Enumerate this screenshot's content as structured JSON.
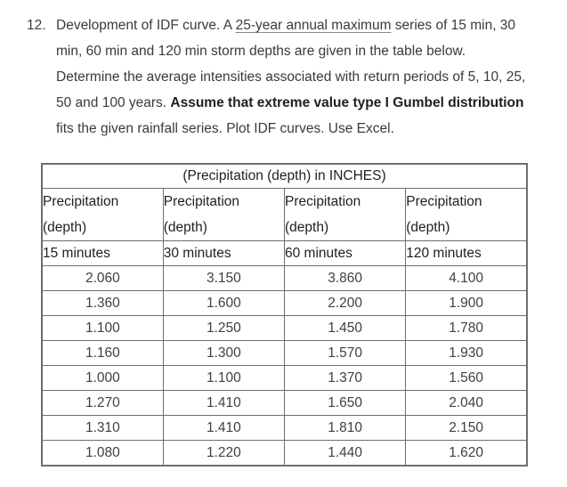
{
  "colors": {
    "background": "#ffffff",
    "body_text": "#3a3a3a",
    "heading_text": "#1f1f1f",
    "table_border": "#6e6e6e"
  },
  "problem": {
    "number": "12.",
    "lines": [
      {
        "pre": "Development of IDF curve. A ",
        "underlined": "25-year annual maximum",
        "post": " series of 15 min, 30"
      },
      {
        "text": "min, 60 min and 120 min storm depths are given in the table below."
      },
      {
        "text": "Determine the average intensities associated with return periods of 5, 10, 25,"
      },
      {
        "pre": "50 and 100 years. ",
        "bold": "Assume that extreme value type I Gumbel distribution"
      },
      {
        "text": "fits the given rainfall series. Plot IDF curves. Use Excel."
      }
    ]
  },
  "table": {
    "title": "(Precipitation (depth) in INCHES)",
    "columns": [
      {
        "label_line1": "Precipitation",
        "label_line2": "(depth)",
        "duration": "15 minutes"
      },
      {
        "label_line1": "Precipitation",
        "label_line2": "(depth)",
        "duration": "30 minutes"
      },
      {
        "label_line1": "Precipitation",
        "label_line2": "(depth)",
        "duration": "60 minutes"
      },
      {
        "label_line1": "Precipitation",
        "label_line2": "(depth)",
        "duration": "120 minutes"
      }
    ],
    "rows": [
      [
        "2.060",
        "3.150",
        "3.860",
        "4.100"
      ],
      [
        "1.360",
        "1.600",
        "2.200",
        "1.900"
      ],
      [
        "1.100",
        "1.250",
        "1.450",
        "1.780"
      ],
      [
        "1.160",
        "1.300",
        "1.570",
        "1.930"
      ],
      [
        "1.000",
        "1.100",
        "1.370",
        "1.560"
      ],
      [
        "1.270",
        "1.410",
        "1.650",
        "2.040"
      ],
      [
        "1.310",
        "1.410",
        "1.810",
        "2.150"
      ],
      [
        "1.080",
        "1.220",
        "1.440",
        "1.620"
      ]
    ]
  }
}
